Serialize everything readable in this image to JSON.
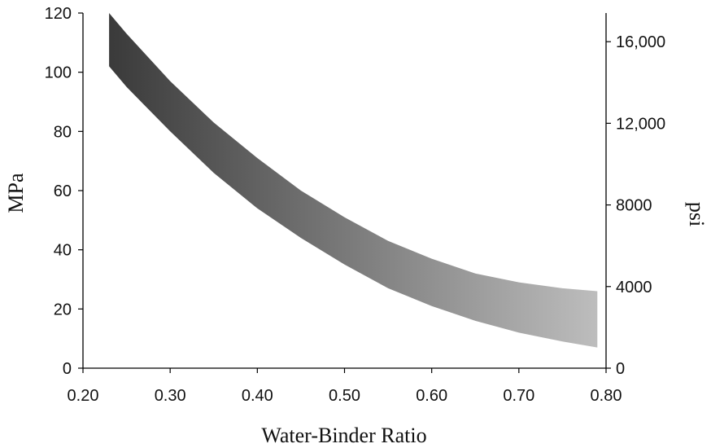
{
  "chart_data": {
    "type": "area",
    "title": "",
    "xlabel": "Water-Binder Ratio",
    "ylabel": "MPa",
    "ylabel_right": "psi",
    "xlim": [
      0.2,
      0.8
    ],
    "ylim": [
      0,
      120
    ],
    "ylim_right_psi": [
      0,
      17404
    ],
    "x_ticks": [
      "0.20",
      "0.30",
      "0.40",
      "0.50",
      "0.60",
      "0.70",
      "0.80"
    ],
    "y_ticks": [
      "0",
      "20",
      "40",
      "60",
      "80",
      "100",
      "120"
    ],
    "y_ticks_right": [
      "0",
      "4000",
      "8000",
      "12,000",
      "16,000"
    ],
    "y_ticks_right_values": [
      0,
      4000,
      8000,
      12000,
      16000
    ],
    "grid": false,
    "legend": "none",
    "band_color_start": "#3a3a3a",
    "band_color_end": "#bdbdbd",
    "series": [
      {
        "name": "",
        "x": [
          0.23,
          0.25,
          0.3,
          0.35,
          0.4,
          0.45,
          0.5,
          0.55,
          0.6,
          0.65,
          0.7,
          0.75,
          0.79
        ],
        "values": [
          120,
          113,
          97,
          83,
          71,
          60,
          51,
          43,
          37,
          32,
          29,
          27,
          26
        ]
      },
      {
        "name": "",
        "x": [
          0.23,
          0.25,
          0.3,
          0.35,
          0.4,
          0.45,
          0.5,
          0.55,
          0.6,
          0.65,
          0.7,
          0.75,
          0.79
        ],
        "values": [
          102,
          95,
          80,
          66,
          54,
          44,
          35,
          27,
          21,
          16,
          12,
          9,
          7
        ]
      }
    ]
  }
}
